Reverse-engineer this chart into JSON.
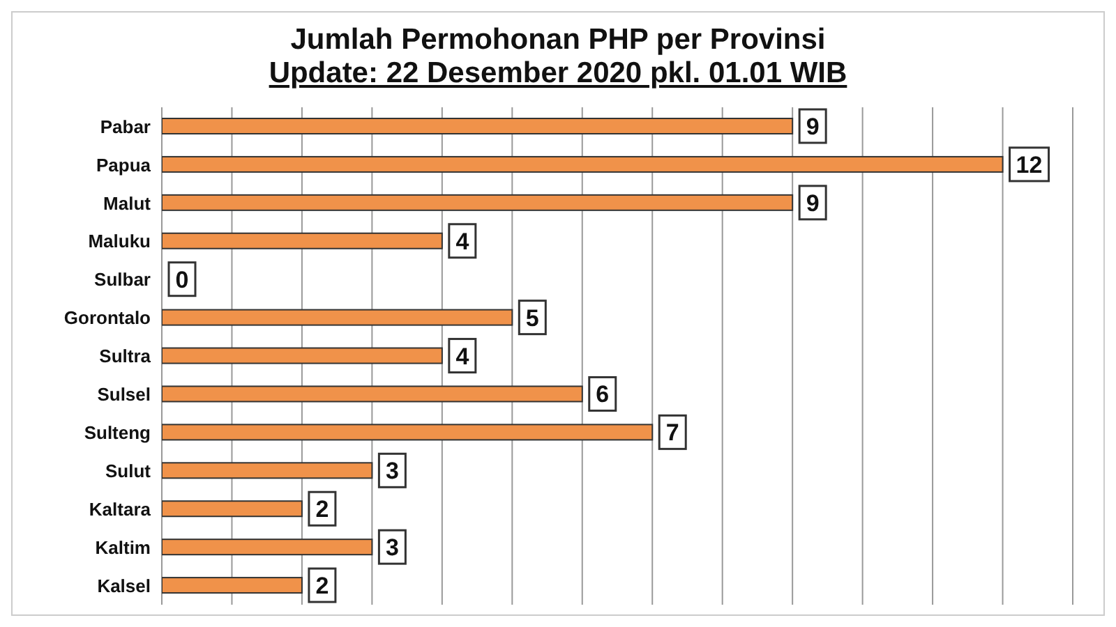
{
  "chart_data": {
    "type": "bar",
    "orientation": "horizontal",
    "title": "Jumlah Permohonan PHP per Provinsi",
    "subtitle": "Update: 22 Desember 2020 pkl. 01.01 WIB",
    "categories": [
      "Pabar",
      "Papua",
      "Malut",
      "Maluku",
      "Sulbar",
      "Gorontalo",
      "Sultra",
      "Sulsel",
      "Sulteng",
      "Sulut",
      "Kaltara",
      "Kaltim",
      "Kalsel"
    ],
    "values": [
      9,
      12,
      9,
      4,
      0,
      5,
      4,
      6,
      7,
      3,
      2,
      3,
      2
    ],
    "color": "#f0924a",
    "xlim": [
      0,
      13
    ],
    "grid": "x",
    "tick_labels": "y",
    "data_labels": true
  }
}
